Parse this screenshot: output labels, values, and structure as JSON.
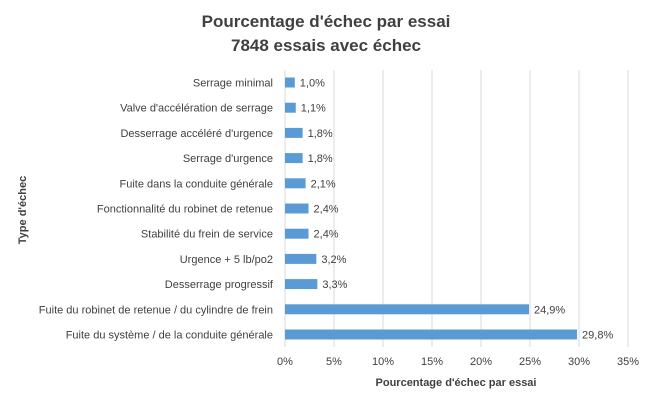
{
  "chart_data": {
    "type": "bar",
    "orientation": "horizontal",
    "title": "Pourcentage d'échec par essai",
    "subtitle": "7848 essais avec échec",
    "xlabel": "Pourcentage d'échec par essai",
    "ylabel": "Type d'échec",
    "xlim": [
      0,
      35
    ],
    "xticks": [
      "0%",
      "5%",
      "10%",
      "15%",
      "20%",
      "25%",
      "30%",
      "35%"
    ],
    "grid": true,
    "bar_color": "#5b9bd5",
    "categories": [
      "Serrage minimal",
      "Valve d'accélération de serrage",
      "Desserrage accéléré d'urgence",
      "Serrage d'urgence",
      "Fuite dans la conduite générale",
      "Fonctionnalité du robinet de retenue",
      "Stabilité du frein de service",
      "Urgence + 5 lb/po2",
      "Desserrage progressif",
      "Fuite du robinet de retenue / du cylindre de frein",
      "Fuite du système / de la conduite générale"
    ],
    "values": [
      1.0,
      1.1,
      1.8,
      1.8,
      2.1,
      2.4,
      2.4,
      3.2,
      3.3,
      24.9,
      29.8
    ],
    "value_labels": [
      "1,0%",
      "1,1%",
      "1,8%",
      "1,8%",
      "2,1%",
      "2,4%",
      "2,4%",
      "3,2%",
      "3,3%",
      "24,9%",
      "29,8%"
    ]
  }
}
